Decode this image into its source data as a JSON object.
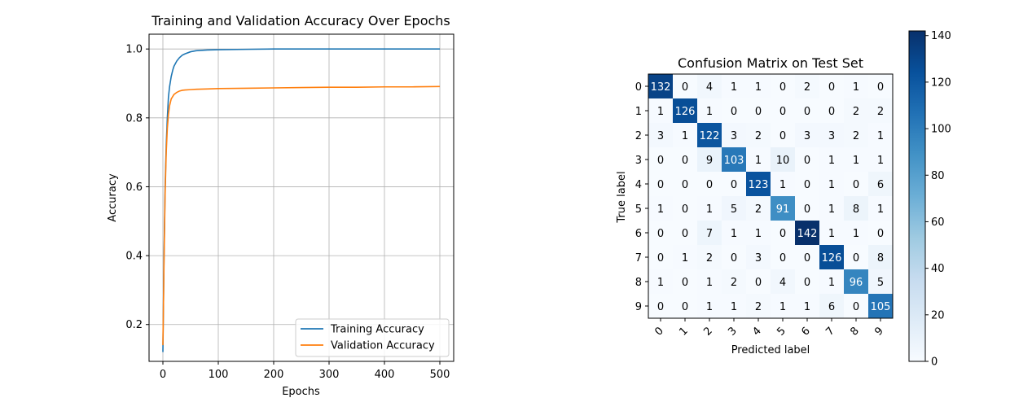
{
  "chart_data": [
    {
      "type": "line",
      "title": "Training and Validation Accuracy Over Epochs",
      "xlabel": "Epochs",
      "ylabel": "Accuracy",
      "xlim": [
        -25,
        525
      ],
      "ylim": [
        0.093,
        1.043
      ],
      "xticks": [
        0,
        100,
        200,
        300,
        400,
        500
      ],
      "yticks": [
        0.2,
        0.4,
        0.6,
        0.8,
        1.0
      ],
      "xtick_labels": [
        "0",
        "100",
        "200",
        "300",
        "400",
        "500"
      ],
      "ytick_labels": [
        "0.2",
        "0.4",
        "0.6",
        "0.8",
        "1.0"
      ],
      "grid": true,
      "legend": "lower-right",
      "series": [
        {
          "name": "Training Accuracy",
          "color": "#1f77b4",
          "x": [
            0,
            2,
            4,
            6,
            8,
            10,
            12,
            15,
            18,
            20,
            25,
            30,
            35,
            40,
            50,
            60,
            80,
            100,
            150,
            200,
            300,
            400,
            500
          ],
          "y": [
            0.12,
            0.4,
            0.6,
            0.72,
            0.8,
            0.86,
            0.89,
            0.92,
            0.94,
            0.95,
            0.965,
            0.975,
            0.982,
            0.986,
            0.992,
            0.995,
            0.997,
            0.998,
            0.999,
            1.0,
            1.0,
            1.0,
            1.0
          ]
        },
        {
          "name": "Validation Accuracy",
          "color": "#ff7f0e",
          "x": [
            0,
            2,
            4,
            6,
            8,
            10,
            12,
            15,
            20,
            25,
            30,
            35,
            40,
            50,
            60,
            80,
            100,
            150,
            200,
            250,
            300,
            350,
            400,
            450,
            500
          ],
          "y": [
            0.14,
            0.38,
            0.58,
            0.7,
            0.77,
            0.81,
            0.835,
            0.855,
            0.868,
            0.874,
            0.878,
            0.88,
            0.881,
            0.882,
            0.883,
            0.884,
            0.885,
            0.886,
            0.887,
            0.888,
            0.889,
            0.889,
            0.89,
            0.89,
            0.891
          ]
        }
      ]
    },
    {
      "type": "heatmap",
      "title": "Confusion Matrix on Test Set",
      "xlabel": "Predicted label",
      "ylabel": "True label",
      "x_categories": [
        "0",
        "1",
        "2",
        "3",
        "4",
        "5",
        "6",
        "7",
        "8",
        "9"
      ],
      "y_categories": [
        "0",
        "1",
        "2",
        "3",
        "4",
        "5",
        "6",
        "7",
        "8",
        "9"
      ],
      "values": [
        [
          132,
          0,
          4,
          1,
          1,
          0,
          2,
          0,
          1,
          0
        ],
        [
          1,
          126,
          1,
          0,
          0,
          0,
          0,
          0,
          2,
          2
        ],
        [
          3,
          1,
          122,
          3,
          2,
          0,
          3,
          3,
          2,
          1
        ],
        [
          0,
          0,
          9,
          103,
          1,
          10,
          0,
          1,
          1,
          1
        ],
        [
          0,
          0,
          0,
          0,
          123,
          1,
          0,
          1,
          0,
          6
        ],
        [
          1,
          0,
          1,
          5,
          2,
          91,
          0,
          1,
          8,
          1
        ],
        [
          0,
          0,
          7,
          1,
          1,
          0,
          142,
          1,
          1,
          0
        ],
        [
          0,
          1,
          2,
          0,
          3,
          0,
          0,
          126,
          0,
          8
        ],
        [
          1,
          0,
          1,
          2,
          0,
          4,
          0,
          1,
          96,
          5
        ],
        [
          0,
          0,
          1,
          1,
          2,
          1,
          1,
          6,
          0,
          105
        ]
      ],
      "colormap": "Blues",
      "vmin": 0,
      "vmax": 142,
      "colorbar_ticks": [
        0,
        20,
        40,
        60,
        80,
        100,
        120,
        140
      ]
    }
  ]
}
